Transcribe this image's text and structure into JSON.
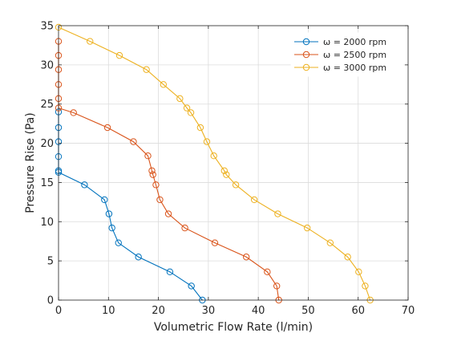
{
  "chart_data": {
    "type": "line",
    "xlabel": "Volumetric Flow Rate (l/min)",
    "ylabel": "Pressure Rise (Pa)",
    "xlim": [
      0,
      70
    ],
    "ylim": [
      0,
      35
    ],
    "xticks": [
      0,
      10,
      20,
      30,
      40,
      50,
      60,
      70
    ],
    "yticks": [
      0,
      5,
      10,
      15,
      20,
      25,
      30,
      35
    ],
    "grid": true,
    "legend_position": "top-right",
    "marker": "open-circle",
    "series": [
      {
        "name": "ω = 2000 rpm",
        "color": "#0072BD",
        "points": [
          [
            0,
            24.0
          ],
          [
            0,
            22.0
          ],
          [
            0,
            20.2
          ],
          [
            0,
            18.3
          ],
          [
            0,
            16.5
          ],
          [
            0,
            16.3
          ],
          [
            5.2,
            14.7
          ],
          [
            9.2,
            12.8
          ],
          [
            10.1,
            11.0
          ],
          [
            10.7,
            9.2
          ],
          [
            12.0,
            7.3
          ],
          [
            16.0,
            5.5
          ],
          [
            22.3,
            3.6
          ],
          [
            26.6,
            1.8
          ],
          [
            28.8,
            0
          ]
        ]
      },
      {
        "name": "ω = 2500 rpm",
        "color": "#D95319",
        "points": [
          [
            0,
            33.0
          ],
          [
            0,
            31.2
          ],
          [
            0,
            29.4
          ],
          [
            0,
            27.5
          ],
          [
            0,
            25.7
          ],
          [
            0,
            24.5
          ],
          [
            3.0,
            23.9
          ],
          [
            9.8,
            22.0
          ],
          [
            15.0,
            20.2
          ],
          [
            17.9,
            18.4
          ],
          [
            18.7,
            16.5
          ],
          [
            18.9,
            16.0
          ],
          [
            19.5,
            14.7
          ],
          [
            20.3,
            12.8
          ],
          [
            22.0,
            11.0
          ],
          [
            25.3,
            9.2
          ],
          [
            31.3,
            7.3
          ],
          [
            37.6,
            5.5
          ],
          [
            41.8,
            3.6
          ],
          [
            43.7,
            1.8
          ],
          [
            44.1,
            0
          ]
        ]
      },
      {
        "name": "ω = 3000 rpm",
        "color": "#EDB120",
        "points": [
          [
            0,
            34.8
          ],
          [
            6.3,
            33.0
          ],
          [
            12.2,
            31.2
          ],
          [
            17.6,
            29.4
          ],
          [
            21.0,
            27.5
          ],
          [
            24.3,
            25.7
          ],
          [
            25.7,
            24.5
          ],
          [
            26.5,
            23.9
          ],
          [
            28.4,
            22.0
          ],
          [
            29.7,
            20.2
          ],
          [
            31.1,
            18.4
          ],
          [
            33.2,
            16.5
          ],
          [
            33.6,
            16.0
          ],
          [
            35.5,
            14.7
          ],
          [
            39.2,
            12.8
          ],
          [
            43.9,
            11.0
          ],
          [
            49.8,
            9.2
          ],
          [
            54.4,
            7.3
          ],
          [
            57.9,
            5.5
          ],
          [
            60.1,
            3.6
          ],
          [
            61.4,
            1.8
          ],
          [
            62.4,
            0
          ]
        ]
      }
    ]
  }
}
